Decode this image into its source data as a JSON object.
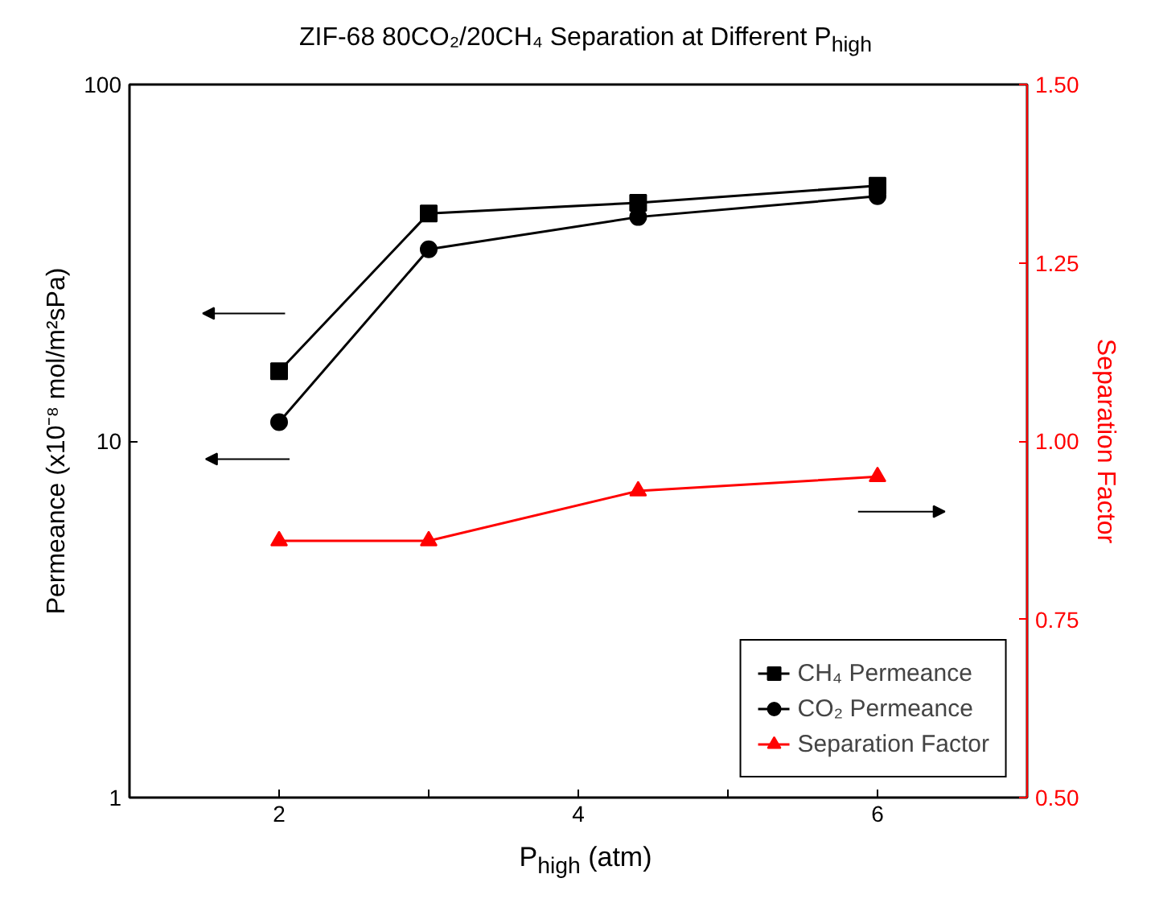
{
  "chart_data": {
    "type": "line",
    "title": "ZIF-68 80CO₂/20CH₄ Separation at Different P$_{high}$",
    "xlabel": "P$_{high}$ (atm)",
    "ylabel": "Permeance (x10⁻⁸ mol/m²sPa)",
    "y2label": "Separation Factor",
    "x": [
      2,
      3,
      4.4,
      6
    ],
    "series": [
      {
        "name": "CH₄ Permeance",
        "color": "#000000",
        "marker": "square",
        "values": [
          15.7,
          43.5,
          46.6,
          52.0
        ]
      },
      {
        "name": "CO₂ Permeance",
        "color": "#000000",
        "marker": "circle",
        "values": [
          11.3,
          34.5,
          42.5,
          48.6
        ]
      },
      {
        "name": "Separation Factor",
        "color": "#ff0000",
        "marker": "triangle",
        "axis": "y2",
        "values": [
          0.86,
          0.86,
          0.93,
          0.95
        ]
      }
    ],
    "xlim": [
      1,
      7
    ],
    "xticks": [
      2,
      {
        "value": 3,
        "label": null
      },
      4,
      {
        "value": 5,
        "label": null
      },
      6
    ],
    "ylim": [
      1,
      100
    ],
    "yticks": [
      1,
      10,
      100
    ],
    "log": "y",
    "y2lim": [
      0.5,
      1.5
    ],
    "y2ticks": [
      {
        "value": 0.5,
        "label": "0.50"
      },
      {
        "value": 0.75,
        "label": "0.75"
      },
      {
        "value": 1.0,
        "label": "1.00"
      },
      {
        "value": 1.25,
        "label": "1.25"
      },
      {
        "value": 1.5,
        "label": "1.50"
      }
    ],
    "grid": false,
    "legend": "bottom right",
    "line_style": "solid"
  }
}
